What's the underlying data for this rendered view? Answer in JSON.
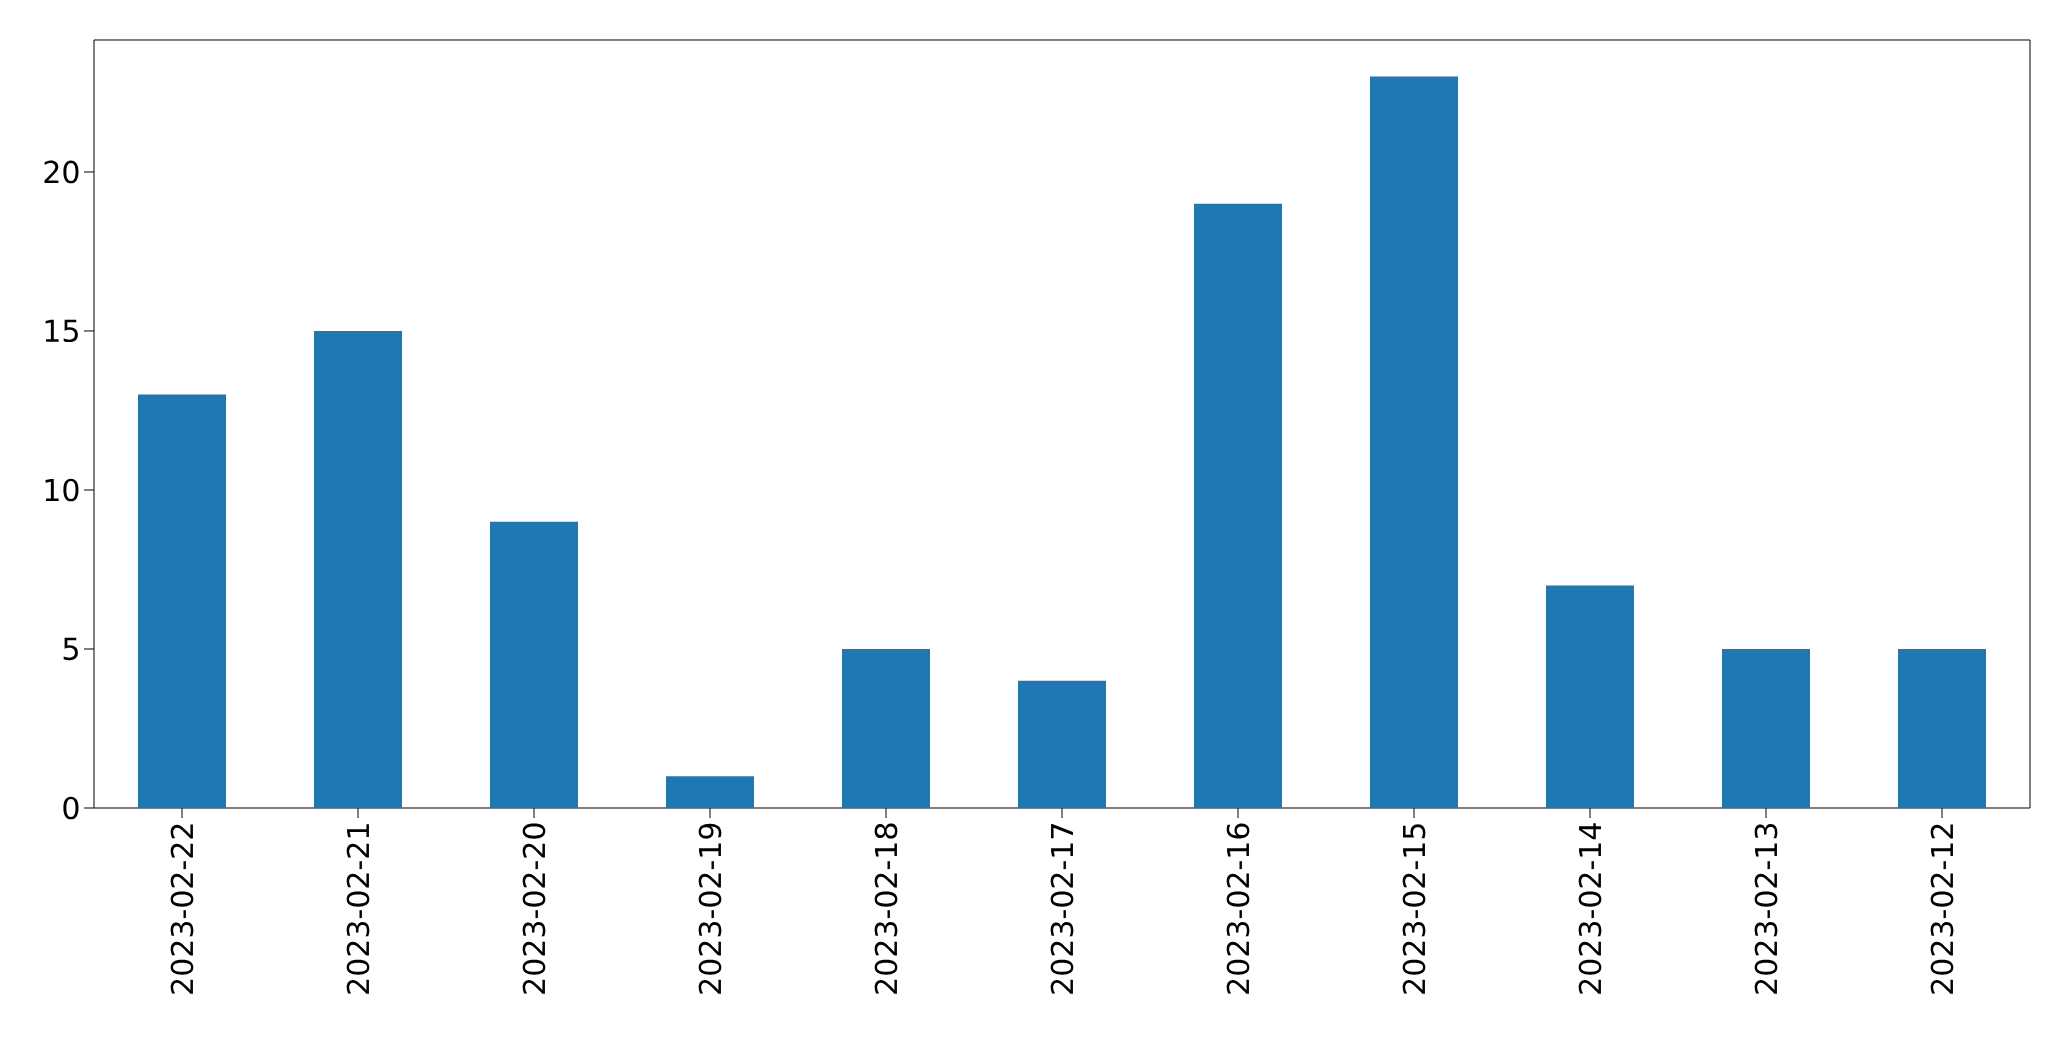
{
  "chart_data": {
    "type": "bar",
    "categories": [
      "2023-02-22",
      "2023-02-21",
      "2023-02-20",
      "2023-02-19",
      "2023-02-18",
      "2023-02-17",
      "2023-02-16",
      "2023-02-15",
      "2023-02-14",
      "2023-02-13",
      "2023-02-12"
    ],
    "values": [
      13,
      15,
      9,
      1,
      5,
      4,
      19,
      23,
      7,
      5,
      5
    ],
    "color": "#1f77b4",
    "ylim": [
      0,
      24.15
    ],
    "yticks": [
      0,
      5,
      10,
      15,
      20
    ]
  }
}
